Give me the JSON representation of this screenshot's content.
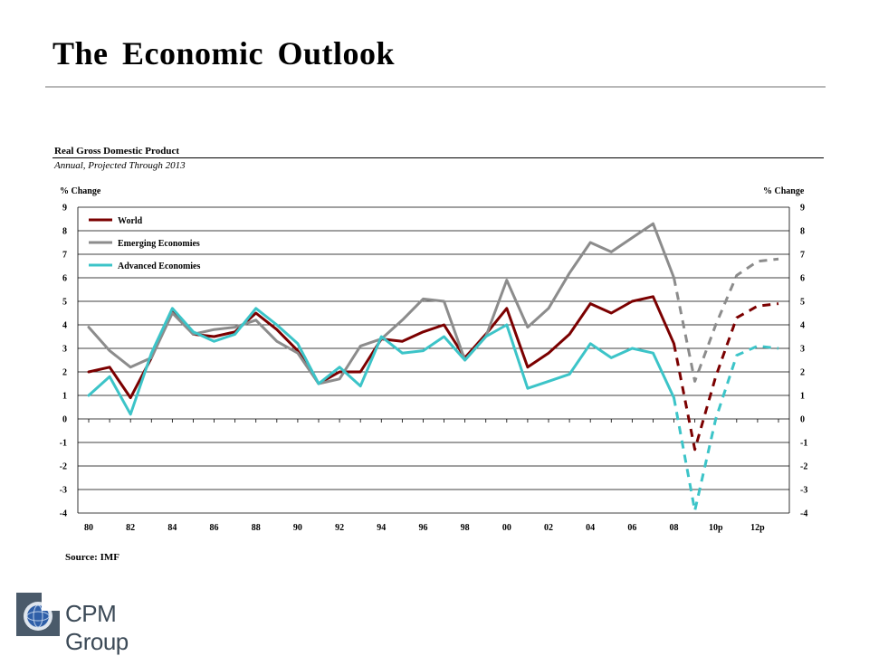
{
  "slide": {
    "title": "The Economic  Outlook",
    "source": "Source: IMF",
    "logo_text": "CPM Group"
  },
  "colors": {
    "world": "#7b0000",
    "emerging": "#8c8c8c",
    "advanced": "#3cc4c8",
    "grid": "#000000",
    "title_rule": "#b8b8b8"
  },
  "chart_data": {
    "type": "line",
    "title": "Real Gross Domestic Product",
    "subtitle": "Annual, Projected Through 2013",
    "ylabel_left": "% Change",
    "ylabel_right": "% Change",
    "ylim": [
      -4,
      9
    ],
    "yticks": [
      -4,
      -3,
      -2,
      -1,
      0,
      1,
      2,
      3,
      4,
      5,
      6,
      7,
      8,
      9
    ],
    "x": [
      1980,
      1981,
      1982,
      1983,
      1984,
      1985,
      1986,
      1987,
      1988,
      1989,
      1990,
      1991,
      1992,
      1993,
      1994,
      1995,
      1996,
      1997,
      1998,
      1999,
      2000,
      2001,
      2002,
      2003,
      2004,
      2005,
      2006,
      2007,
      2008,
      2009,
      2010,
      2011,
      2012,
      2013
    ],
    "xticks": [
      {
        "x": 1980,
        "label": "80"
      },
      {
        "x": 1982,
        "label": "82"
      },
      {
        "x": 1984,
        "label": "84"
      },
      {
        "x": 1986,
        "label": "86"
      },
      {
        "x": 1988,
        "label": "88"
      },
      {
        "x": 1990,
        "label": "90"
      },
      {
        "x": 1992,
        "label": "92"
      },
      {
        "x": 1994,
        "label": "94"
      },
      {
        "x": 1996,
        "label": "96"
      },
      {
        "x": 1998,
        "label": "98"
      },
      {
        "x": 2000,
        "label": "00"
      },
      {
        "x": 2002,
        "label": "02"
      },
      {
        "x": 2004,
        "label": "04"
      },
      {
        "x": 2006,
        "label": "06"
      },
      {
        "x": 2008,
        "label": "08"
      },
      {
        "x": 2010,
        "label": "10p"
      },
      {
        "x": 2012,
        "label": "12p"
      }
    ],
    "projection_start": 2008,
    "legend_position": "top-left",
    "grid": true,
    "series": [
      {
        "name": "World",
        "color_key": "world",
        "values": [
          2.0,
          2.2,
          0.9,
          2.6,
          4.6,
          3.6,
          3.5,
          3.7,
          4.5,
          3.8,
          2.9,
          1.5,
          2.0,
          2.0,
          3.4,
          3.3,
          3.7,
          4.0,
          2.6,
          3.6,
          4.7,
          2.2,
          2.8,
          3.6,
          4.9,
          4.5,
          5.0,
          5.2,
          3.2,
          -1.3,
          1.8,
          4.3,
          4.8,
          4.9
        ]
      },
      {
        "name": "Emerging Economies",
        "color_key": "emerging",
        "values": [
          3.9,
          2.9,
          2.2,
          2.6,
          4.5,
          3.6,
          3.8,
          3.9,
          4.2,
          3.3,
          2.8,
          1.5,
          1.7,
          3.1,
          3.4,
          4.2,
          5.1,
          5.0,
          2.5,
          3.5,
          5.9,
          3.9,
          4.7,
          6.2,
          7.5,
          7.1,
          7.7,
          8.3,
          6.0,
          1.6,
          4.0,
          6.1,
          6.7,
          6.8
        ]
      },
      {
        "name": "Advanced Economies",
        "color_key": "advanced",
        "values": [
          1.0,
          1.8,
          0.2,
          2.8,
          4.7,
          3.7,
          3.3,
          3.6,
          4.7,
          4.0,
          3.2,
          1.5,
          2.2,
          1.4,
          3.5,
          2.8,
          2.9,
          3.5,
          2.5,
          3.5,
          4.0,
          1.3,
          1.6,
          1.9,
          3.2,
          2.6,
          3.0,
          2.8,
          0.9,
          -3.9,
          0.0,
          2.7,
          3.1,
          3.0
        ]
      }
    ]
  }
}
